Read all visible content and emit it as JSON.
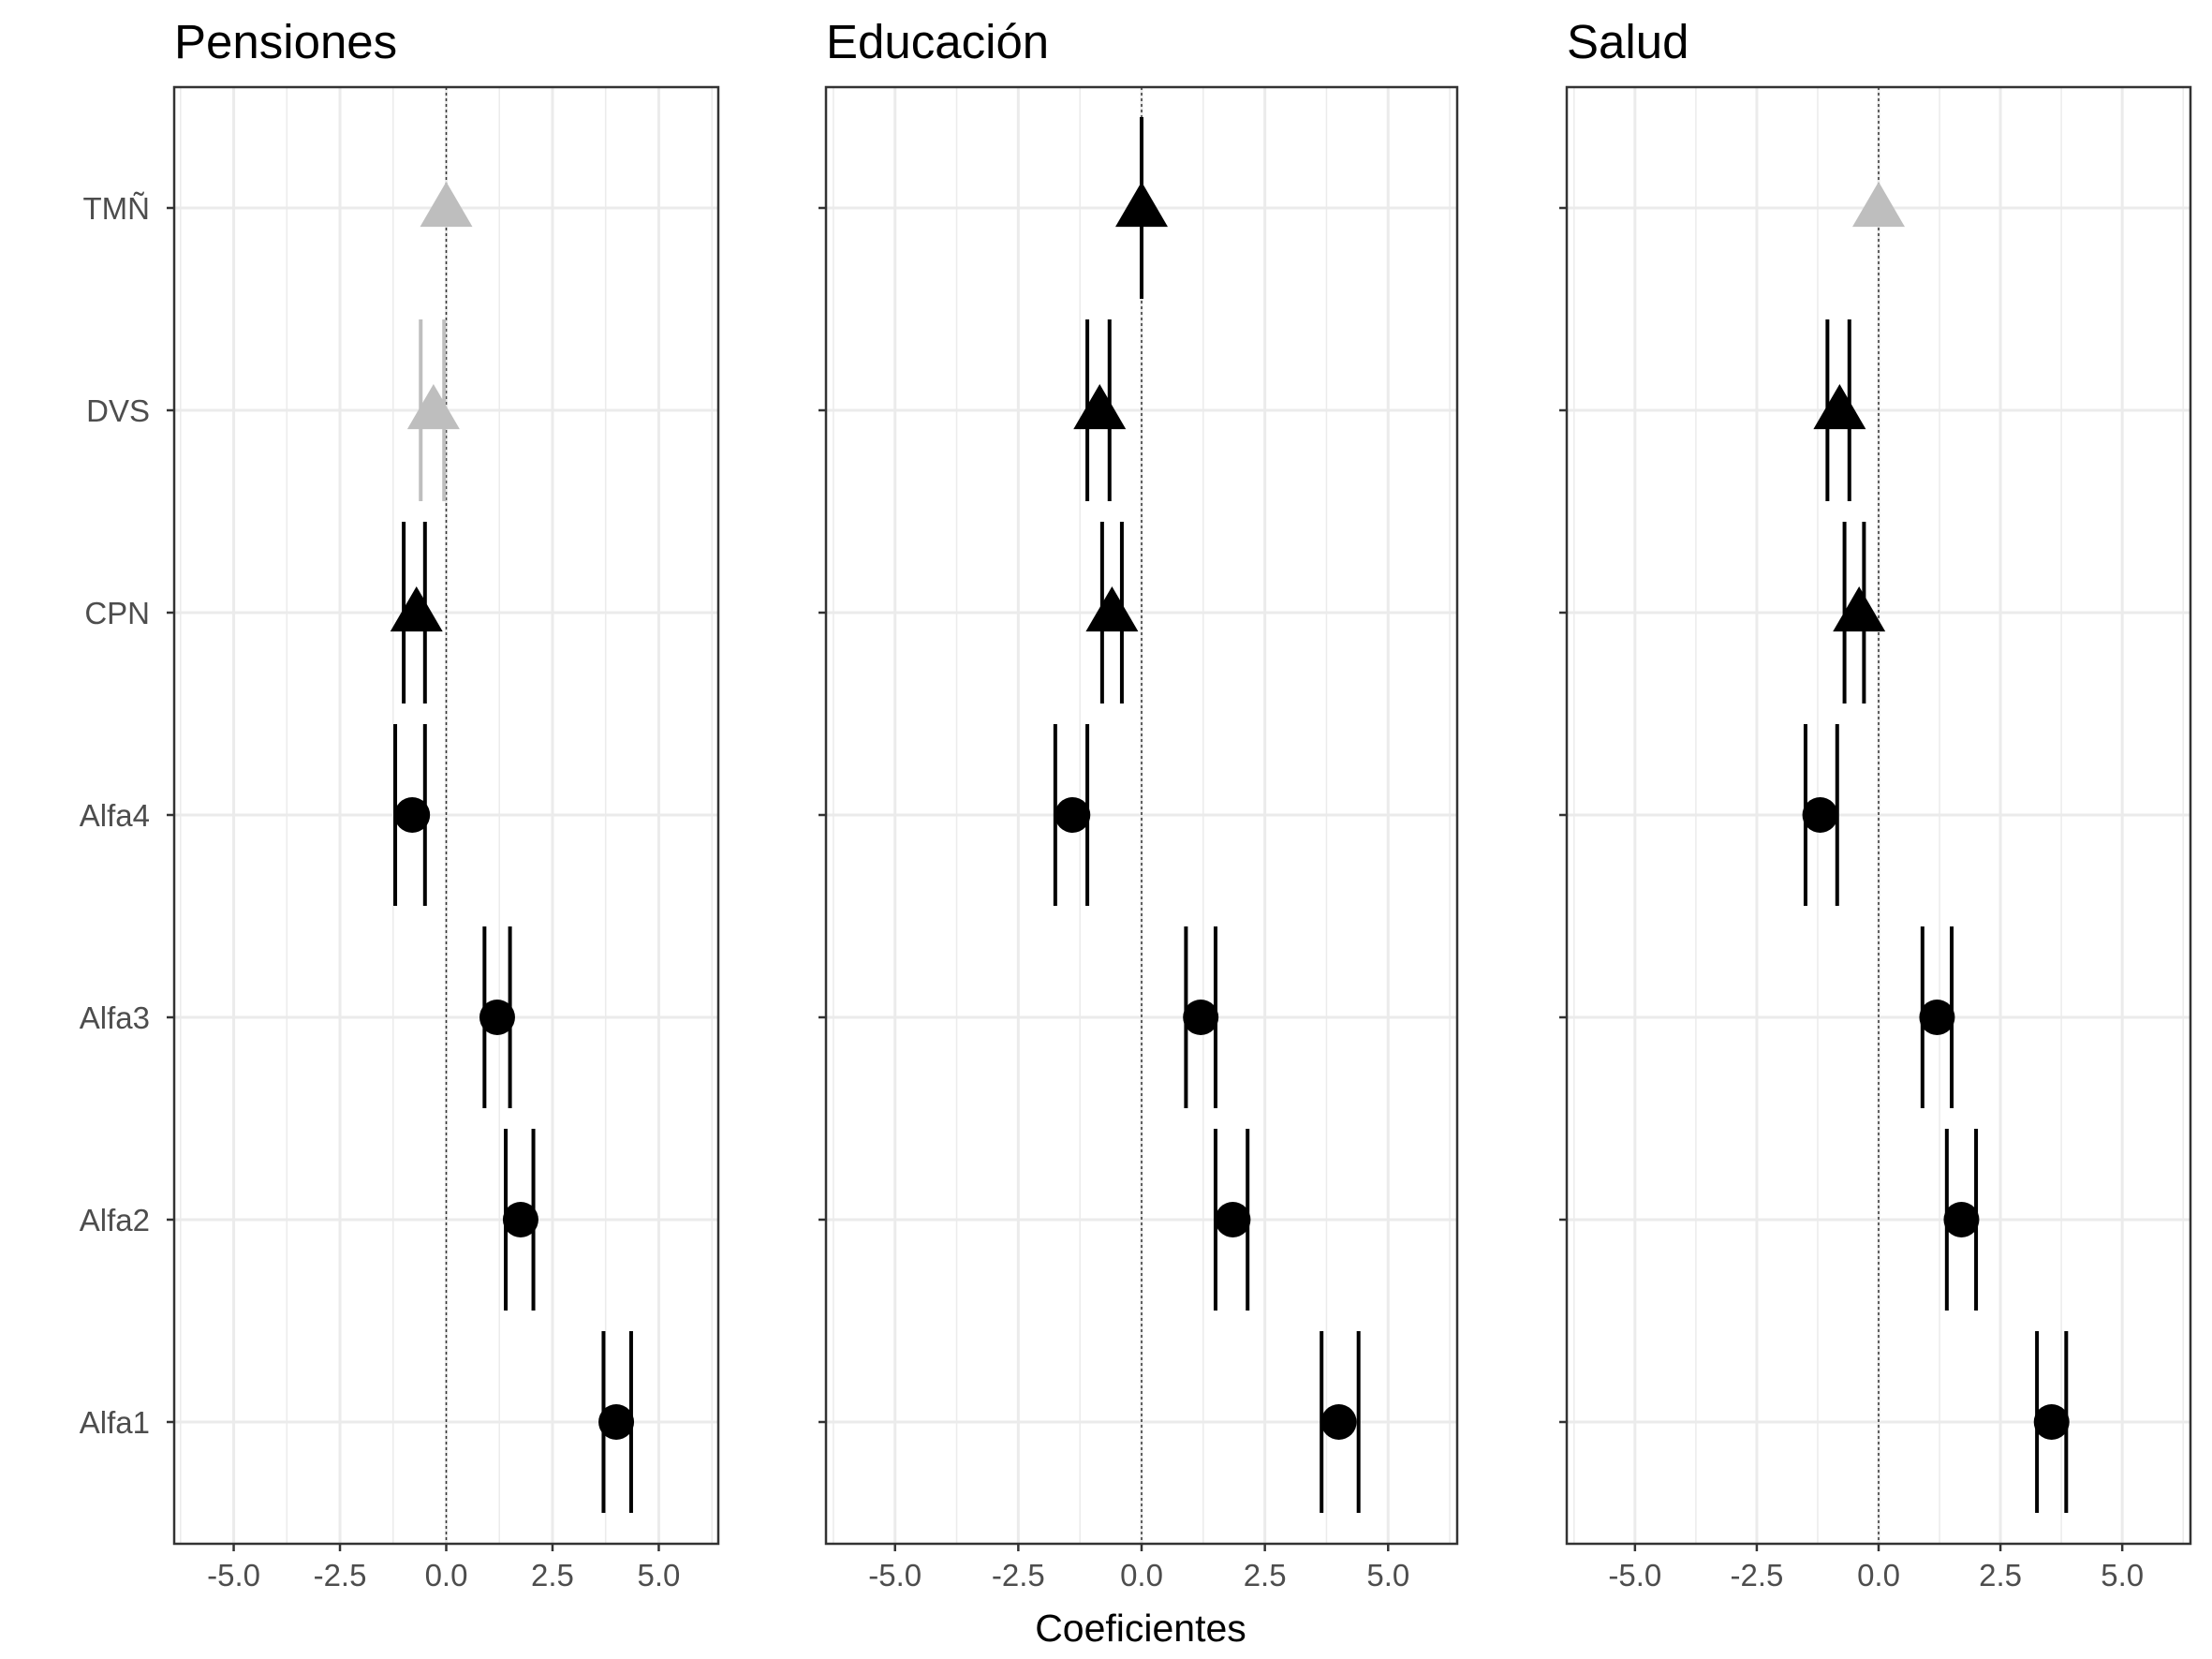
{
  "chart_data": {
    "type": "scatter",
    "xlabel": "Coeficientes",
    "ylabel": "",
    "categories": [
      "TMÑ",
      "DVS",
      "CPN",
      "Alfa4",
      "Alfa3",
      "Alfa2",
      "Alfa1"
    ],
    "xlim": [
      -6.4,
      6.4
    ],
    "xticks": [
      -5.0,
      -2.5,
      0.0,
      2.5,
      5.0
    ],
    "xtick_labels": [
      "-5.0",
      "-2.5",
      "0.0",
      "2.5",
      "5.0"
    ],
    "reference_line": 0.0,
    "grid": true,
    "marker_legend": {
      "circle": "Alfa1-Alfa4",
      "triangle": "TMÑ, DVS, CPN",
      "black": "significant",
      "grey": "not significant"
    },
    "colors": {
      "significant": "#000000",
      "not_significant": "#bebebe",
      "grid": "#ebebeb",
      "border": "#333333"
    },
    "panels": [
      {
        "title": "Pensiones",
        "points": [
          {
            "term": "TMÑ",
            "estimate": 0.0,
            "ci_low": 0.0,
            "ci_high": 0.0,
            "ci_low_90": 0.0,
            "ci_high_90": 0.0,
            "shape": "triangle",
            "significant": false
          },
          {
            "term": "DVS",
            "estimate": -0.3,
            "ci_low": -0.6,
            "ci_high": -0.05,
            "ci_low_90": -0.6,
            "ci_high_90": -0.1,
            "shape": "triangle",
            "significant": false
          },
          {
            "term": "CPN",
            "estimate": -0.7,
            "ci_low": -1.0,
            "ci_high": -0.5,
            "ci_low_90": -0.9,
            "ci_high_90": -0.5,
            "shape": "triangle",
            "significant": true
          },
          {
            "term": "Alfa4",
            "estimate": -0.8,
            "ci_low": -1.2,
            "ci_high": -0.5,
            "ci_low_90": -1.1,
            "ci_high_90": -0.5,
            "shape": "circle",
            "significant": true
          },
          {
            "term": "Alfa3",
            "estimate": 1.2,
            "ci_low": 0.9,
            "ci_high": 1.5,
            "ci_low_90": 0.9,
            "ci_high_90": 1.5,
            "shape": "circle",
            "significant": true
          },
          {
            "term": "Alfa2",
            "estimate": 1.75,
            "ci_low": 1.4,
            "ci_high": 2.05,
            "ci_low_90": 1.45,
            "ci_high_90": 2.0,
            "shape": "circle",
            "significant": true
          },
          {
            "term": "Alfa1",
            "estimate": 4.0,
            "ci_low": 3.7,
            "ci_high": 4.35,
            "ci_low_90": 3.7,
            "ci_high_90": 4.3,
            "shape": "circle",
            "significant": true
          }
        ]
      },
      {
        "title": "Educación",
        "points": [
          {
            "term": "TMÑ",
            "estimate": 0.0,
            "ci_low": 0.0,
            "ci_high": 0.0,
            "ci_low_90": 0.0,
            "ci_high_90": 0.0,
            "shape": "triangle",
            "significant": true
          },
          {
            "term": "DVS",
            "estimate": -0.85,
            "ci_low": -1.1,
            "ci_high": -0.65,
            "ci_low_90": -1.1,
            "ci_high_90": -0.65,
            "shape": "triangle",
            "significant": true
          },
          {
            "term": "CPN",
            "estimate": -0.6,
            "ci_low": -0.8,
            "ci_high": -0.4,
            "ci_low_90": -0.8,
            "ci_high_90": -0.4,
            "shape": "triangle",
            "significant": true
          },
          {
            "term": "Alfa4",
            "estimate": -1.4,
            "ci_low": -1.75,
            "ci_high": -1.1,
            "ci_low_90": -1.75,
            "ci_high_90": -1.1,
            "shape": "circle",
            "significant": true
          },
          {
            "term": "Alfa3",
            "estimate": 1.2,
            "ci_low": 0.9,
            "ci_high": 1.5,
            "ci_low_90": 0.9,
            "ci_high_90": 1.5,
            "shape": "circle",
            "significant": true
          },
          {
            "term": "Alfa2",
            "estimate": 1.85,
            "ci_low": 1.5,
            "ci_high": 2.15,
            "ci_low_90": 1.5,
            "ci_high_90": 2.15,
            "shape": "circle",
            "significant": true
          },
          {
            "term": "Alfa1",
            "estimate": 4.0,
            "ci_low": 3.65,
            "ci_high": 4.4,
            "ci_low_90": 3.65,
            "ci_high_90": 4.4,
            "shape": "circle",
            "significant": true
          }
        ]
      },
      {
        "title": "Salud",
        "points": [
          {
            "term": "TMÑ",
            "estimate": 0.0,
            "ci_low": 0.0,
            "ci_high": 0.0,
            "ci_low_90": 0.0,
            "ci_high_90": 0.0,
            "shape": "triangle",
            "significant": false
          },
          {
            "term": "DVS",
            "estimate": -0.8,
            "ci_low": -1.05,
            "ci_high": -0.6,
            "ci_low_90": -1.05,
            "ci_high_90": -0.6,
            "shape": "triangle",
            "significant": true
          },
          {
            "term": "CPN",
            "estimate": -0.4,
            "ci_low": -0.7,
            "ci_high": -0.3,
            "ci_low_90": -0.7,
            "ci_high_90": -0.3,
            "shape": "triangle",
            "significant": true
          },
          {
            "term": "Alfa4",
            "estimate": -1.2,
            "ci_low": -1.5,
            "ci_high": -0.85,
            "ci_low_90": -1.5,
            "ci_high_90": -0.85,
            "shape": "circle",
            "significant": true
          },
          {
            "term": "Alfa3",
            "estimate": 1.2,
            "ci_low": 0.9,
            "ci_high": 1.5,
            "ci_low_90": 0.9,
            "ci_high_90": 1.5,
            "shape": "circle",
            "significant": true
          },
          {
            "term": "Alfa2",
            "estimate": 1.7,
            "ci_low": 1.4,
            "ci_high": 2.0,
            "ci_low_90": 1.4,
            "ci_high_90": 2.0,
            "shape": "circle",
            "significant": true
          },
          {
            "term": "Alfa1",
            "estimate": 3.55,
            "ci_low": 3.25,
            "ci_high": 3.85,
            "ci_low_90": 3.25,
            "ci_high_90": 3.85,
            "shape": "circle",
            "significant": true
          }
        ]
      }
    ]
  }
}
